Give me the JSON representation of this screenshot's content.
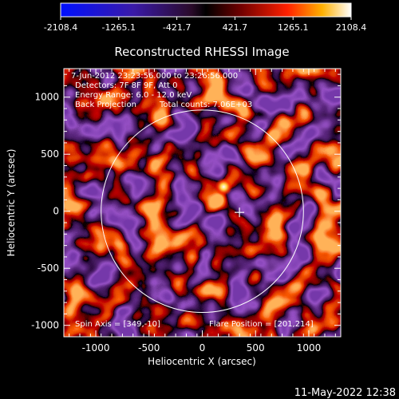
{
  "colorbar": {
    "tick_labels": [
      "-2108.4",
      "-1265.1",
      "-421.7",
      "421.7",
      "1265.1",
      "2108.4"
    ],
    "range": [
      -2108.4,
      2108.4
    ]
  },
  "chart_data": {
    "type": "heatmap",
    "title": "Reconstructed RHESSI Image",
    "xlabel": "Heliocentric X (arcsec)",
    "ylabel": "Heliocentric Y (arcsec)",
    "xlim": [
      -1300,
      1300
    ],
    "ylim": [
      -1100,
      1250
    ],
    "xticks": [
      -1000,
      -500,
      0,
      500,
      1000
    ],
    "yticks": [
      -1000,
      -500,
      0,
      500,
      1000
    ],
    "solar_limb": {
      "center": [
        0,
        0
      ],
      "radius": 950
    },
    "flare_marker": [
      349,
      -10
    ],
    "peak_source": [
      201,
      214
    ],
    "annotations": [
      "7-Jun-2012 23:23:56.000 to 23:26:56.000",
      "Detectors: 7F 8F 9F, Att 0",
      "Energy Range: 6.0 - 12.0 keV",
      "Back Projection",
      "Total counts: 7.06E+03"
    ],
    "bottom_left_label": "Spin Axis = [349,-10]",
    "bottom_right_label": "Flare Position = [201,214]",
    "colors": {
      "low": "#0000ff",
      "mid": "#4b0a5a",
      "high": "#ff2000",
      "peak": "#ffffff"
    }
  },
  "timestamp": "11-May-2022 12:38"
}
